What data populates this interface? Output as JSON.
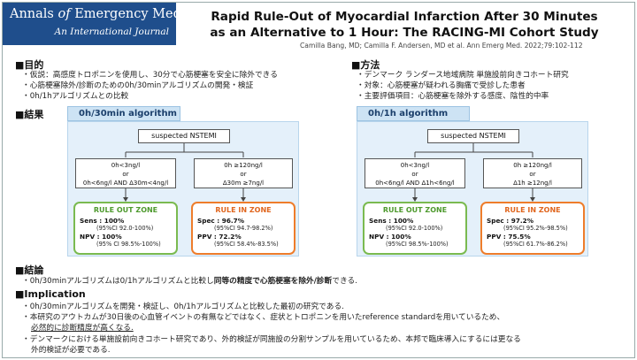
{
  "journal": {
    "name_part1": "Annals ",
    "name_italic": "of",
    "name_part2": " Emergency Medicine",
    "subtitle": "An International Journal"
  },
  "title": {
    "line1": "Rapid Rule-Out of Myocardial Infarction After 30 Minutes",
    "line2": "as an Alternative to 1 Hour: The RACING-MI Cohort Study"
  },
  "citation": "Camilla Bang, MD; Camilla F. Andersen, MD et al. Ann Emerg Med. 2022;79:102-112",
  "objective": {
    "heading": "■目的",
    "bullets": [
      "・仮説：高感度トロポニンを使用し、30分で心筋梗塞を安全に除外できる",
      "・心筋梗塞除外/診断のための0h/30minアルゴリズムの開発・検証",
      "・0h/1hアルゴリズムとの比較"
    ]
  },
  "methods": {
    "heading": "■方法",
    "bullets": [
      "・デンマーク ランダース地域病院 単施設前向きコホート研究",
      "・対象：心筋梗塞が疑われる胸痛で受診した患者",
      "・主要評価項目：心筋梗塞を除外する感度、陰性的中率"
    ]
  },
  "results_heading": "■結果",
  "panels": [
    {
      "title": "0h/30min algorithm",
      "root": "suspected NSTEMI",
      "left_cond": [
        "0h<3ng/l",
        "or",
        "0h<6ng/l AND Δ30m<4ng/l"
      ],
      "right_cond": [
        "0h ≥120ng/l",
        "or",
        "Δ30m ≥7ng/l"
      ],
      "out_zone": {
        "label": "RULE OUT ZONE",
        "s1": "Sens : 100%",
        "s1ci": "(95%CI 92.0-100%)",
        "s2": "NPV : 100%",
        "s2ci": "(95% CI 98.5%-100%)"
      },
      "in_zone": {
        "label": "RULE IN ZONE",
        "s1": "Spec : 96.7%",
        "s1ci": "(95%CI 94.7-98.2%)",
        "s2": "PPV : 72.2%",
        "s2ci": "(95%CI 58.4%-83.5%)"
      }
    },
    {
      "title": "0h/1h algorithm",
      "root": "suspected NSTEMI",
      "left_cond": [
        "0h<3ng/l",
        "or",
        "0h<6ng/l AND Δ1h<6ng/l"
      ],
      "right_cond": [
        "0h ≥120ng/l",
        "or",
        "Δ1h ≥12ng/l"
      ],
      "out_zone": {
        "label": "RULE OUT ZONE",
        "s1": "Sens : 100%",
        "s1ci": "(95%CI 92.0-100%)",
        "s2": "NPV : 100%",
        "s2ci": "(95%CI 98.5%-100%)"
      },
      "in_zone": {
        "label": "RULE IN ZONE",
        "s1": "Spec : 97.2%",
        "s1ci": "(95%CI 95.2%-98.5%)",
        "s2": "PPV : 75.5%",
        "s2ci": "(95%CI 61.7%-86.2%)"
      }
    }
  ],
  "conclusion": {
    "heading": "■結論",
    "text_before": "・0h/30minアルゴリズムは0/1hアルゴリズムと比較し",
    "text_bold": "同等の精度で心筋梗塞を除外/診断",
    "text_after": "できる."
  },
  "implication": {
    "heading": "■Implication",
    "b1": "・0h/30minアルゴリズムを開発・検証し、0h/1hアルゴリズムと比較した最初の研究である.",
    "b2": "・本研究のアウトカムが30日後の心血管イベントの有無などではなく、症状とトロポニンを用いたreference standardを用いているため、",
    "b2cont": "必然的に診断精度が高くなる.",
    "b3": "・デンマークにおける単施設前向きコホート研究であり、外的検証が同施設の分割サンプルを用いているため、本邦で臨床導入にするには更なる",
    "b3cont": "外的検証が必要である."
  }
}
